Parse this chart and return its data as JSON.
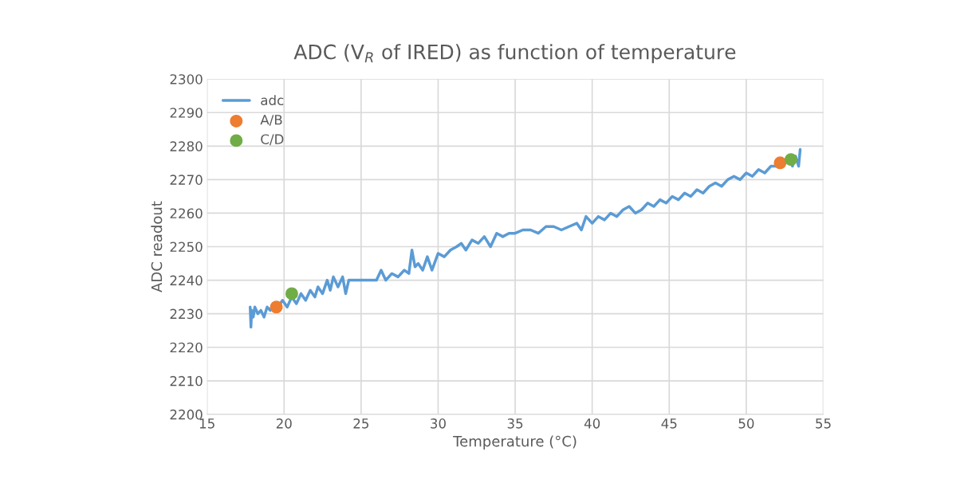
{
  "chart_data": {
    "type": "line",
    "title": "ADC (V$_{R}$ of IRED) as function of temperature",
    "xlabel": "Temperature (°C)",
    "ylabel": "ADC readout",
    "xlim": [
      15,
      55
    ],
    "xticks": [
      15,
      20,
      25,
      30,
      35,
      40,
      45,
      50,
      55
    ],
    "ylim": [
      2200,
      2300
    ],
    "yticks": [
      2200,
      2210,
      2220,
      2230,
      2240,
      2250,
      2260,
      2270,
      2280,
      2290,
      2300
    ],
    "grid": true,
    "legend": "top left",
    "series": [
      {
        "name": "adc",
        "color": "#5b9bd5",
        "marker": "none",
        "x": [
          17.8,
          17.85,
          17.9,
          18.0,
          18.1,
          18.3,
          18.5,
          18.7,
          18.9,
          19.1,
          19.3,
          19.6,
          19.9,
          20.2,
          20.5,
          20.8,
          21.1,
          21.4,
          21.7,
          22.0,
          22.2,
          22.5,
          22.8,
          23.0,
          23.2,
          23.5,
          23.8,
          24.0,
          24.2,
          24.5,
          25.0,
          25.5,
          26.0,
          26.3,
          26.6,
          27.0,
          27.4,
          27.8,
          28.1,
          28.3,
          28.5,
          28.7,
          29.0,
          29.3,
          29.6,
          30.0,
          30.4,
          30.8,
          31.2,
          31.5,
          31.8,
          32.2,
          32.6,
          33.0,
          33.4,
          33.8,
          34.2,
          34.6,
          35.0,
          35.5,
          36.0,
          36.5,
          37.0,
          37.5,
          38.0,
          38.5,
          39.0,
          39.3,
          39.6,
          40.0,
          40.4,
          40.8,
          41.2,
          41.6,
          42.0,
          42.4,
          42.8,
          43.2,
          43.6,
          44.0,
          44.4,
          44.8,
          45.2,
          45.6,
          46.0,
          46.4,
          46.8,
          47.2,
          47.6,
          48.0,
          48.4,
          48.8,
          49.2,
          49.6,
          50.0,
          50.4,
          50.8,
          51.2,
          51.6,
          52.0,
          52.4,
          52.8,
          53.0,
          53.2,
          53.4,
          53.5
        ],
        "values": [
          2232,
          2226,
          2231,
          2229,
          2232,
          2230,
          2231,
          2229,
          2232,
          2231,
          2233,
          2232,
          2234,
          2232,
          2235,
          2233,
          2236,
          2234,
          2237,
          2235,
          2238,
          2236,
          2240,
          2237,
          2241,
          2238,
          2241,
          2236,
          2240,
          2240,
          2240,
          2240,
          2240,
          2243,
          2240,
          2242,
          2241,
          2243,
          2242,
          2249,
          2244,
          2245,
          2243,
          2247,
          2243,
          2248,
          2247,
          2249,
          2250,
          2251,
          2249,
          2252,
          2251,
          2253,
          2250,
          2254,
          2253,
          2254,
          2254,
          2255,
          2255,
          2254,
          2256,
          2256,
          2255,
          2256,
          2257,
          2255,
          2259,
          2257,
          2259,
          2258,
          2260,
          2259,
          2261,
          2262,
          2260,
          2261,
          2263,
          2262,
          2264,
          2263,
          2265,
          2264,
          2266,
          2265,
          2267,
          2266,
          2268,
          2269,
          2268,
          2270,
          2271,
          2270,
          2272,
          2271,
          2273,
          2272,
          2274,
          2274,
          2275,
          2276,
          2274,
          2277,
          2274,
          2279
        ]
      },
      {
        "name": "A/B",
        "color": "#ed7d31",
        "type": "scatter",
        "marker": "circle",
        "x": [
          19.5,
          52.2
        ],
        "values": [
          2232,
          2275
        ]
      },
      {
        "name": "C/D",
        "color": "#70ad47",
        "type": "scatter",
        "marker": "circle",
        "x": [
          20.5,
          52.9
        ],
        "values": [
          2236,
          2276
        ]
      }
    ]
  }
}
